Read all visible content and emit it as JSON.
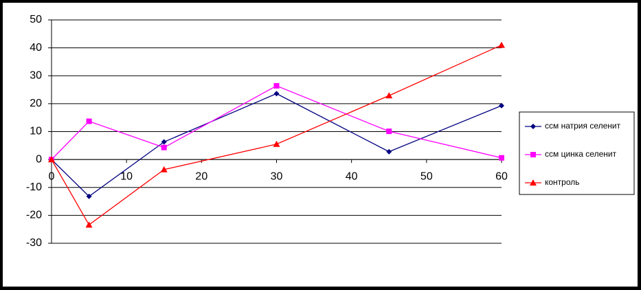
{
  "chart_data": {
    "type": "line",
    "x": [
      0,
      5,
      15,
      30,
      45,
      60
    ],
    "series": [
      {
        "name": "ссм натрия селенит",
        "color": "#000080",
        "marker": "diamond",
        "values": [
          0,
          -13.2,
          6.3,
          23.6,
          2.8,
          19.3
        ]
      },
      {
        "name": "ссм цинка селенит",
        "color": "#ff00ff",
        "marker": "square",
        "values": [
          0,
          13.7,
          4.3,
          26.4,
          10.1,
          0.6
        ]
      },
      {
        "name": "контроль",
        "color": "#ff0000",
        "marker": "triangle",
        "values": [
          0,
          -23.4,
          -3.6,
          5.5,
          22.9,
          41
        ]
      }
    ],
    "xlim": [
      0,
      60
    ],
    "xticks": [
      0,
      10,
      20,
      30,
      40,
      50,
      60
    ],
    "ylim": [
      -30,
      50
    ],
    "yticks": [
      -30,
      -20,
      -10,
      0,
      10,
      20,
      30,
      40,
      50
    ],
    "grid": true,
    "legend": "right"
  }
}
